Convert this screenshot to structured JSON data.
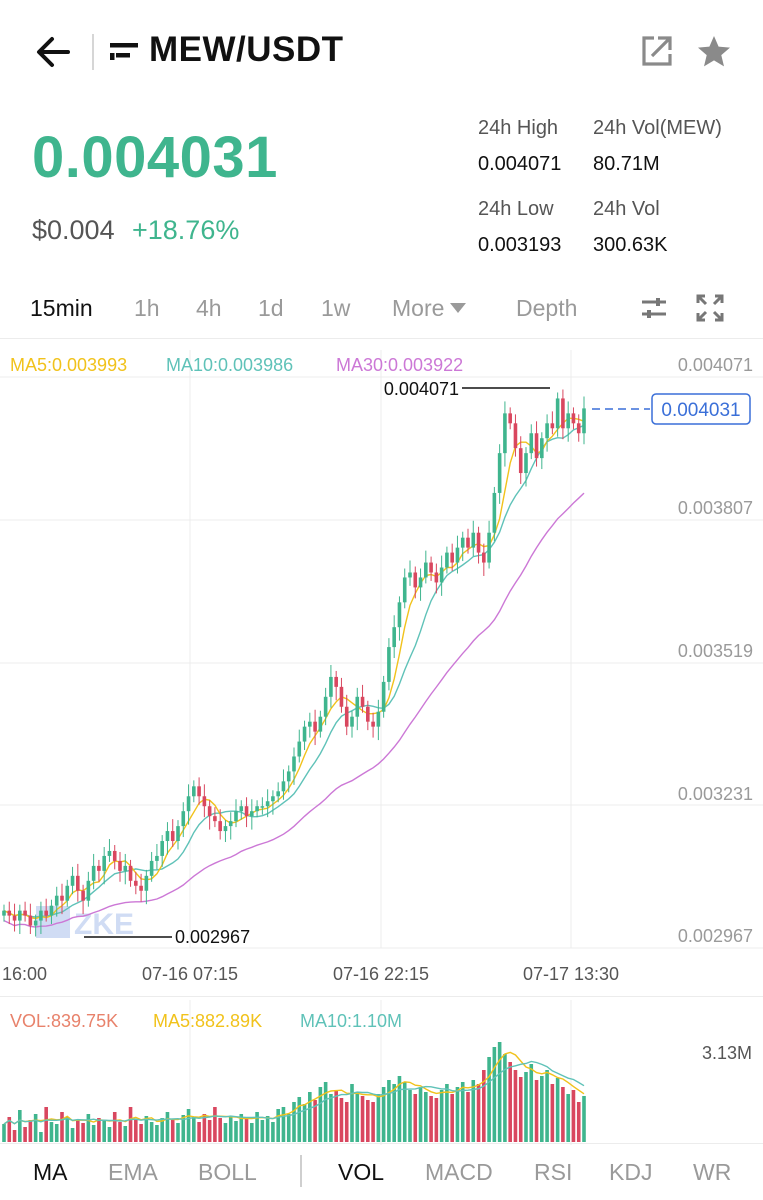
{
  "header": {
    "title": "MEW/USDT",
    "back_icon": "arrow-left-icon",
    "pair_icon": "exchange-logo-icon",
    "share_icon": "share-external-icon",
    "star_icon": "star-icon"
  },
  "ticker": {
    "last_price": "0.004031",
    "usd_price": "$0.004",
    "change": "+18.76%",
    "high_label": "24h High",
    "high_value": "0.004071",
    "low_label": "24h Low",
    "low_value": "0.003193",
    "vol_base_label": "24h Vol(MEW)",
    "vol_base_value": "80.71M",
    "vol_quote_label": "24h Vol",
    "vol_quote_value": "300.63K"
  },
  "tabs": [
    "15min",
    "1h",
    "4h",
    "1d",
    "1w",
    "More",
    "Depth"
  ],
  "active_tab": "15min",
  "tool_icons": [
    "settings-sliders-icon",
    "fullscreen-icon"
  ],
  "colors": {
    "up": "#3fb58e",
    "down": "#d9475f",
    "ma5": "#f1c21b",
    "ma10": "#5fc2b8",
    "ma30": "#cc78d6",
    "vol_label": "#e8826b",
    "accent_blue": "#3a6fd8"
  },
  "chart_legend": {
    "ma5": "MA5:0.003993",
    "ma10": "MA10:0.003986",
    "ma30": "MA30:0.003922"
  },
  "volume_legend": {
    "vol": "VOL:839.75K",
    "ma5": "MA5:882.89K",
    "ma10": "MA10:1.10M"
  },
  "chart_data": {
    "type": "candlestick",
    "y_ticks": [
      "0.004071",
      "0.003807",
      "0.003519",
      "0.003231",
      "0.002967"
    ],
    "ylim": [
      0.002967,
      0.004071
    ],
    "x_ticks": [
      "16:00",
      "07-16 07:15",
      "07-16 22:15",
      "07-17 13:30"
    ],
    "high_marker": "0.004071",
    "low_marker": "0.002967",
    "current_price_label": "0.004031",
    "close_series": [
      0.00302,
      0.00301,
      0.003,
      0.00302,
      0.00301,
      0.00299,
      0.003,
      0.00302,
      0.00301,
      0.00303,
      0.00305,
      0.00304,
      0.00307,
      0.00309,
      0.00306,
      0.00304,
      0.00308,
      0.00311,
      0.0031,
      0.00313,
      0.00314,
      0.00312,
      0.0031,
      0.00311,
      0.00308,
      0.00307,
      0.00306,
      0.00309,
      0.00312,
      0.00313,
      0.00316,
      0.00318,
      0.00316,
      0.00319,
      0.00322,
      0.00325,
      0.00327,
      0.00325,
      0.00323,
      0.00321,
      0.0032,
      0.00318,
      0.00319,
      0.0032,
      0.00322,
      0.00323,
      0.00321,
      0.00322,
      0.00323,
      0.00323,
      0.00324,
      0.00325,
      0.00326,
      0.00328,
      0.0033,
      0.00333,
      0.00336,
      0.00339,
      0.0034,
      0.00338,
      0.00341,
      0.00345,
      0.00349,
      0.00347,
      0.00343,
      0.00339,
      0.00341,
      0.00345,
      0.00343,
      0.0034,
      0.00339,
      0.00342,
      0.00348,
      0.00355,
      0.00359,
      0.00364,
      0.00369,
      0.0037,
      0.00367,
      0.00369,
      0.00372,
      0.0037,
      0.00368,
      0.00371,
      0.00374,
      0.00372,
      0.00375,
      0.00377,
      0.00375,
      0.00378,
      0.00374,
      0.00372,
      0.00378,
      0.00386,
      0.00394,
      0.00402,
      0.004,
      0.00395,
      0.0039,
      0.00394,
      0.00398,
      0.00393,
      0.00397,
      0.004,
      0.00399,
      0.00405,
      0.00399,
      0.00402,
      0.004,
      0.00398,
      0.00403
    ],
    "volume_ymax_label": "3.13M",
    "volume_series": [
      0.18,
      0.25,
      0.12,
      0.32,
      0.15,
      0.22,
      0.28,
      0.1,
      0.35,
      0.2,
      0.18,
      0.3,
      0.25,
      0.14,
      0.22,
      0.19,
      0.28,
      0.17,
      0.24,
      0.21,
      0.15,
      0.3,
      0.2,
      0.16,
      0.35,
      0.22,
      0.18,
      0.26,
      0.2,
      0.17,
      0.24,
      0.3,
      0.22,
      0.19,
      0.27,
      0.33,
      0.25,
      0.2,
      0.28,
      0.22,
      0.35,
      0.24,
      0.19,
      0.26,
      0.21,
      0.28,
      0.23,
      0.19,
      0.3,
      0.22,
      0.26,
      0.2,
      0.33,
      0.35,
      0.28,
      0.4,
      0.45,
      0.38,
      0.5,
      0.42,
      0.55,
      0.6,
      0.48,
      0.52,
      0.44,
      0.4,
      0.58,
      0.5,
      0.46,
      0.42,
      0.4,
      0.48,
      0.55,
      0.62,
      0.58,
      0.66,
      0.6,
      0.52,
      0.48,
      0.55,
      0.5,
      0.46,
      0.44,
      0.52,
      0.58,
      0.48,
      0.55,
      0.6,
      0.5,
      0.62,
      0.58,
      0.72,
      0.85,
      0.95,
      1.0,
      0.88,
      0.8,
      0.72,
      0.65,
      0.7,
      0.78,
      0.62,
      0.66,
      0.72,
      0.58,
      0.64,
      0.55,
      0.48,
      0.52,
      0.4,
      0.46
    ]
  },
  "indicators": {
    "main": [
      "MA",
      "EMA",
      "BOLL"
    ],
    "sub": [
      "VOL",
      "MACD",
      "RSI",
      "KDJ",
      "WR"
    ],
    "active_main": "MA",
    "active_sub": "VOL"
  }
}
